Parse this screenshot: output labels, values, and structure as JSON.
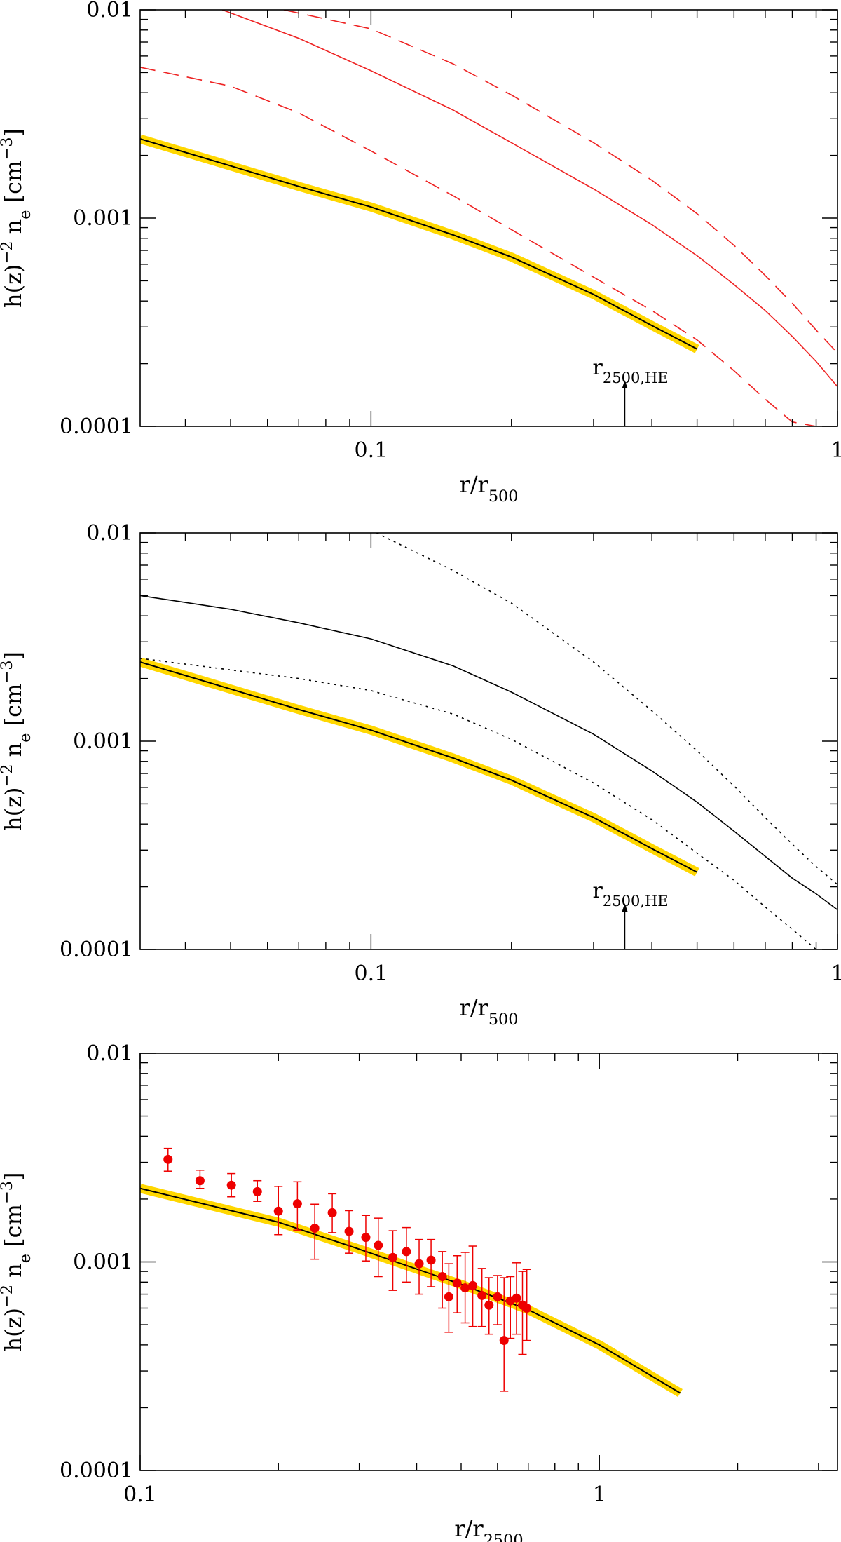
{
  "chart_data": [
    {
      "type": "line",
      "xscale": "log",
      "yscale": "log",
      "xlim": [
        0.032,
        1
      ],
      "ylim": [
        0.0001,
        0.01
      ],
      "xlabel": "r/r500",
      "xlabel_main": "r/r",
      "xlabel_sub": "500",
      "ylabel_prefix": "h(z)",
      "ylabel_sup": "−2",
      "ylabel_mid": " n",
      "ylabel_sub": "e",
      "ylabel_unit_open": " [cm",
      "ylabel_unit_sup": "−3",
      "ylabel_unit_close": "]",
      "x_ticks": [
        {
          "value": 0.1,
          "label": "0.1"
        },
        {
          "value": 1,
          "label": "1"
        }
      ],
      "y_ticks": [
        {
          "value": 0.0001,
          "label": "0.0001"
        },
        {
          "value": 0.001,
          "label": "0.001"
        },
        {
          "value": 0.01,
          "label": "0.01"
        }
      ],
      "grid": false,
      "series": [
        {
          "style": "fit-band",
          "color": "#000000",
          "band_color": "#FFD700",
          "x": [
            0.032,
            0.05,
            0.07,
            0.1,
            0.15,
            0.2,
            0.3,
            0.4,
            0.5
          ],
          "y": [
            0.0024,
            0.00178,
            0.00142,
            0.00113,
            0.00083,
            0.00065,
            0.00043,
            0.000305,
            0.000235
          ]
        },
        {
          "style": "solid",
          "color": "#ee2222",
          "x": [
            0.048,
            0.07,
            0.1,
            0.15,
            0.2,
            0.3,
            0.4,
            0.5,
            0.6,
            0.7,
            0.8,
            0.9,
            1.0
          ],
          "y": [
            0.01,
            0.0073,
            0.0051,
            0.0033,
            0.0023,
            0.00138,
            0.00093,
            0.00066,
            0.00048,
            0.00036,
            0.00027,
            0.000205,
            0.000155
          ]
        },
        {
          "style": "dashed",
          "color": "#ee2222",
          "x": [
            0.032,
            0.05,
            0.07,
            0.1,
            0.15,
            0.2,
            0.3,
            0.4,
            0.5,
            0.6,
            0.7,
            0.8,
            0.9
          ],
          "y": [
            0.0053,
            0.0043,
            0.0032,
            0.0021,
            0.00128,
            0.00088,
            0.00052,
            0.00036,
            0.00026,
            0.000185,
            0.000135,
            0.000105,
            0.0001
          ]
        },
        {
          "style": "dashed",
          "color": "#ee2222",
          "x": [
            0.065,
            0.1,
            0.15,
            0.2,
            0.3,
            0.4,
            0.5,
            0.6,
            0.7,
            0.8,
            0.9,
            1.0
          ],
          "y": [
            0.01,
            0.0081,
            0.0055,
            0.0039,
            0.0023,
            0.00152,
            0.00105,
            0.00074,
            0.00053,
            0.00039,
            0.00029,
            0.000225
          ]
        }
      ],
      "annotations": [
        {
          "main": "r",
          "sub": "2500,HE",
          "x": 0.35
        }
      ]
    },
    {
      "type": "line",
      "xscale": "log",
      "yscale": "log",
      "xlim": [
        0.032,
        1
      ],
      "ylim": [
        0.0001,
        0.01
      ],
      "xlabel": "r/r500",
      "xlabel_main": "r/r",
      "xlabel_sub": "500",
      "ylabel_prefix": "h(z)",
      "ylabel_sup": "−2",
      "ylabel_mid": " n",
      "ylabel_sub": "e",
      "ylabel_unit_open": " [cm",
      "ylabel_unit_sup": "−3",
      "ylabel_unit_close": "]",
      "x_ticks": [
        {
          "value": 0.1,
          "label": "0.1"
        },
        {
          "value": 1,
          "label": "1"
        }
      ],
      "y_ticks": [
        {
          "value": 0.0001,
          "label": "0.0001"
        },
        {
          "value": 0.001,
          "label": "0.001"
        },
        {
          "value": 0.01,
          "label": "0.01"
        }
      ],
      "grid": false,
      "series": [
        {
          "style": "fit-band",
          "color": "#000000",
          "band_color": "#FFD700",
          "x": [
            0.032,
            0.05,
            0.07,
            0.1,
            0.15,
            0.2,
            0.3,
            0.4,
            0.5
          ],
          "y": [
            0.0024,
            0.00178,
            0.00142,
            0.00113,
            0.00083,
            0.00065,
            0.00043,
            0.000305,
            0.000235
          ]
        },
        {
          "style": "solid",
          "color": "#000000",
          "x": [
            0.032,
            0.05,
            0.07,
            0.1,
            0.15,
            0.2,
            0.3,
            0.4,
            0.5,
            0.6,
            0.7,
            0.8,
            0.9,
            1.0
          ],
          "y": [
            0.005,
            0.0043,
            0.0037,
            0.0031,
            0.0023,
            0.00172,
            0.00108,
            0.00072,
            0.00051,
            0.00037,
            0.00028,
            0.00022,
            0.000185,
            0.000155
          ]
        },
        {
          "style": "dotted",
          "color": "#000000",
          "x": [
            0.032,
            0.05,
            0.07,
            0.1,
            0.15,
            0.2,
            0.3,
            0.4,
            0.5,
            0.6,
            0.7,
            0.8,
            0.9,
            1.0
          ],
          "y": [
            0.0025,
            0.0022,
            0.002,
            0.00175,
            0.00135,
            0.00102,
            0.00063,
            0.00042,
            0.00029,
            0.000215,
            0.00016,
            0.000125,
            0.0001,
            0.0001
          ]
        },
        {
          "style": "dotted",
          "color": "#000000",
          "x": [
            0.1,
            0.15,
            0.2,
            0.3,
            0.4,
            0.5,
            0.6,
            0.7,
            0.8,
            0.9,
            1.0
          ],
          "y": [
            0.0103,
            0.0066,
            0.0046,
            0.0024,
            0.0014,
            0.0009,
            0.00061,
            0.00043,
            0.00032,
            0.00025,
            0.000205
          ]
        }
      ],
      "annotations": [
        {
          "main": "r",
          "sub": "2500,HE",
          "x": 0.35
        }
      ]
    },
    {
      "type": "scatter",
      "xscale": "log",
      "yscale": "log",
      "xlim": [
        0.1,
        3.3
      ],
      "ylim": [
        0.0001,
        0.01
      ],
      "xlabel": "r/r2500",
      "xlabel_main": "r/r",
      "xlabel_sub": "2500",
      "ylabel_prefix": "h(z)",
      "ylabel_sup": "−2",
      "ylabel_mid": " n",
      "ylabel_sub": "e",
      "ylabel_unit_open": " [cm",
      "ylabel_unit_sup": "−3",
      "ylabel_unit_close": "]",
      "x_ticks": [
        {
          "value": 0.1,
          "label": "0.1"
        },
        {
          "value": 1,
          "label": "1"
        }
      ],
      "y_ticks": [
        {
          "value": 0.0001,
          "label": "0.0001"
        },
        {
          "value": 0.001,
          "label": "0.001"
        },
        {
          "value": 0.01,
          "label": "0.01"
        }
      ],
      "grid": false,
      "series": [
        {
          "style": "fit-band",
          "color": "#000000",
          "band_color": "#FFD700",
          "x": [
            0.1,
            0.2,
            0.3,
            0.5,
            0.7,
            1.0,
            1.5
          ],
          "y": [
            0.00225,
            0.00155,
            0.00115,
            0.00078,
            0.00059,
            0.0004,
            0.000235
          ]
        }
      ],
      "points": {
        "color": "#ee0000",
        "x": [
          0.115,
          0.135,
          0.158,
          0.18,
          0.2,
          0.22,
          0.24,
          0.262,
          0.285,
          0.31,
          0.33,
          0.355,
          0.38,
          0.405,
          0.43,
          0.455,
          0.47,
          0.49,
          0.51,
          0.53,
          0.555,
          0.575,
          0.6,
          0.62,
          0.64,
          0.66,
          0.68,
          0.695
        ],
        "y": [
          0.0031,
          0.00245,
          0.00233,
          0.00217,
          0.00175,
          0.0019,
          0.00145,
          0.00172,
          0.0014,
          0.00131,
          0.0012,
          0.00105,
          0.00112,
          0.00098,
          0.00102,
          0.00085,
          0.00068,
          0.00079,
          0.00075,
          0.00077,
          0.00069,
          0.00062,
          0.00068,
          0.00042,
          0.00065,
          0.00067,
          0.00062,
          0.0006
        ],
        "yerr_low": [
          0.00038,
          0.0002,
          0.00028,
          0.00022,
          0.0004,
          0.00048,
          0.00042,
          0.00034,
          0.0003,
          0.0003,
          0.00035,
          0.00032,
          0.00032,
          0.00028,
          0.00026,
          0.00025,
          0.00022,
          0.00022,
          0.00024,
          0.00028,
          0.0002,
          0.00017,
          0.00018,
          0.00018,
          0.00022,
          0.00022,
          0.00026,
          0.00018
        ],
        "yerr_high": [
          0.0004,
          0.0003,
          0.00032,
          0.00028,
          0.00055,
          0.00052,
          0.00044,
          0.0004,
          0.00036,
          0.00036,
          0.00042,
          0.00036,
          0.00034,
          0.0003,
          0.00026,
          0.00027,
          0.0003,
          0.00028,
          0.00036,
          0.00042,
          0.00024,
          0.00022,
          0.00018,
          0.00042,
          0.0002,
          0.00032,
          0.00028,
          0.00032
        ]
      }
    }
  ]
}
